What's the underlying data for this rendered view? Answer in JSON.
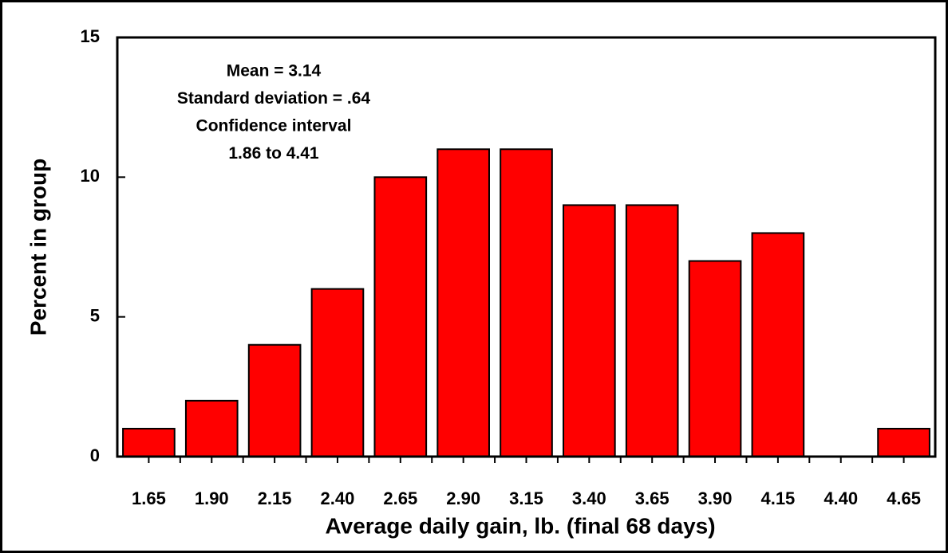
{
  "chart_data": {
    "type": "bar",
    "annotation": [
      "Mean = 3.14",
      "Standard deviation = .64",
      "Confidence interval",
      "1.86 to 4.41"
    ],
    "xlabel": "Average daily gain, lb. (final 68 days)",
    "ylabel": "Percent in group",
    "categories": [
      "1.65",
      "1.90",
      "2.15",
      "2.40",
      "2.65",
      "2.90",
      "3.15",
      "3.40",
      "3.65",
      "3.90",
      "4.15",
      "4.40",
      "4.65"
    ],
    "values": [
      1,
      2,
      4,
      6,
      10,
      11,
      11,
      9,
      9,
      7,
      8,
      0,
      1
    ],
    "color": "#ff0000",
    "ylim": [
      0,
      15
    ],
    "yticks": [
      0,
      5,
      10,
      15
    ],
    "grid": false
  }
}
